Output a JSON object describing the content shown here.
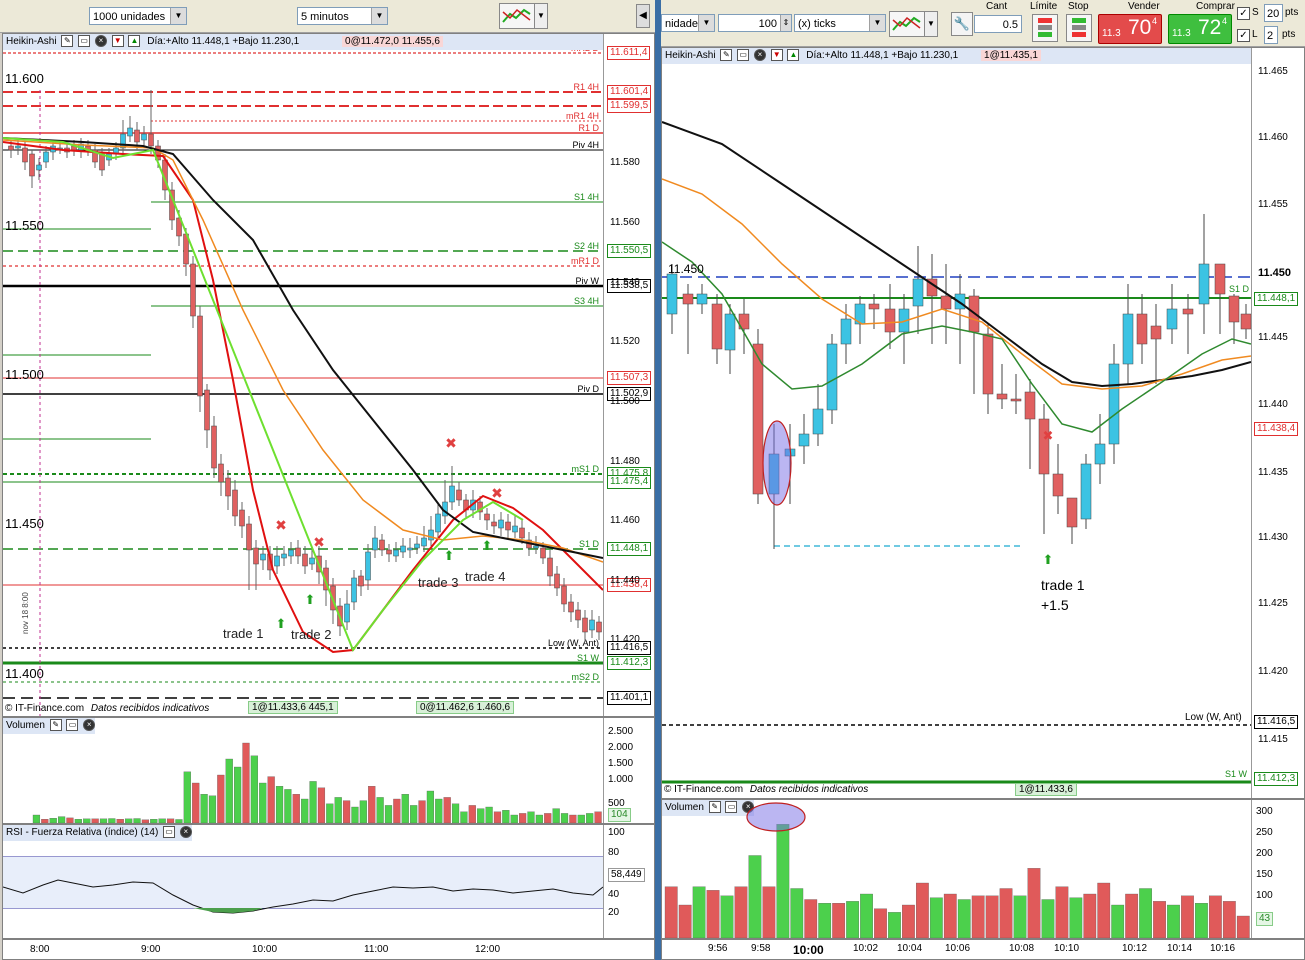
{
  "left_window": {
    "units_combo": "1000 unidades",
    "timeframe_combo": "5 minutos",
    "chart_header": {
      "instrument": "Heikin-Ashi",
      "info": "Día:+Alto 11.448,1 +Bajo 11.230,1",
      "order_tag": "0@11.472,0  11.455,6"
    },
    "price_axis": [
      "11.580",
      "11.560",
      "11.540",
      "11.520",
      "11.500",
      "11.480",
      "11.460",
      "11.440",
      "11.420"
    ],
    "levels": [
      {
        "name": "mR2 D",
        "price": "11.611,4",
        "color": "#e03030"
      },
      {
        "name": "R1 4H",
        "price": "11.601,4",
        "color": "#e03030"
      },
      {
        "name": "",
        "price": "11.599,5",
        "color": "#e03030"
      },
      {
        "name": "mR1 4H",
        "price": "",
        "color": "#e03030"
      },
      {
        "name": "R1 D",
        "price": "",
        "color": "#e03030"
      },
      {
        "name": "Piv 4H",
        "price": "",
        "color": "#000000"
      },
      {
        "name": "S1 4H",
        "price": "",
        "color": "#1a8a1a"
      },
      {
        "name": "S2 4H",
        "price": "11.550,5",
        "color": "#1a8a1a"
      },
      {
        "name": "mR1 D",
        "price": "",
        "color": "#e03030"
      },
      {
        "name": "Piv W",
        "price": "11.538,5",
        "color": "#000000"
      },
      {
        "name": "S3 4H",
        "price": "",
        "color": "#1a8a1a"
      },
      {
        "name": "",
        "price": "11.507,3",
        "color": "#e03030"
      },
      {
        "name": "Piv D",
        "price": "11.502,9",
        "color": "#000000"
      },
      {
        "name": "mS1 D",
        "price": "11.475,8",
        "color": "#1a8a1a"
      },
      {
        "name": "",
        "price": "11.475,4",
        "color": "#1a8a1a"
      },
      {
        "name": "S1 D",
        "price": "11.448,1",
        "color": "#1a8a1a"
      },
      {
        "name": "",
        "price": "11.438,4",
        "color": "#e03030"
      },
      {
        "name": "Low (W, Ant)",
        "price": "11.416,5",
        "color": "#000000"
      },
      {
        "name": "S1 W",
        "price": "11.412,3",
        "color": "#1a8a1a"
      },
      {
        "name": "mS2 D",
        "price": "",
        "color": "#1a8a1a"
      },
      {
        "name": "",
        "price": "11.401,1",
        "color": "#000000"
      }
    ],
    "left_price_labels": [
      "11.600",
      "11.550",
      "11.500",
      "11.450",
      "11.400"
    ],
    "trade_labels": [
      "trade 1",
      "trade 2",
      "trade 3",
      "trade 4"
    ],
    "footer_note": "© IT-Finance.com",
    "footer_status": "Datos recibidos indicativos",
    "footer_tag1": "1@11.433,6  445,1",
    "footer_tag2": "0@11.462,6  1.460,6",
    "volume_title": "Volumen",
    "volume_axis": [
      "2.500",
      "2.000",
      "1.500",
      "1.000",
      "500"
    ],
    "volume_last": "104",
    "rsi_title": "RSI - Fuerza Relativa (índice) (14)",
    "rsi_axis": [
      "100",
      "80",
      "60",
      "40",
      "20"
    ],
    "rsi_last": "58,449",
    "time_axis": [
      "8:00",
      "9:00",
      "10:00",
      "11:00",
      "12:00"
    ],
    "vertical_date": "nov 18 8:00"
  },
  "right_window": {
    "units_combo": "nidades",
    "ticks_value": "100",
    "ticks_combo": "(x) ticks",
    "qty_label": "Cant",
    "qty_value": "0.5",
    "limit_label": "Límite",
    "stop_label": "Stop",
    "sell_label": "Vender",
    "buy_label": "Comprar",
    "sell_prefix": "11.3",
    "sell_big": "70",
    "sell_sup": "4",
    "buy_prefix": "11.3",
    "buy_big": "72",
    "buy_sup": "4",
    "s_label": "S",
    "s_value": "20",
    "s_unit": "pts",
    "l_label": "L",
    "l_value": "2",
    "l_unit": "pts",
    "chart_header": {
      "instrument": "Heikin-Ashi",
      "info": "Día:+Alto 11.448,1 +Bajo 11.230,1",
      "order_tag": "1@11.435,1"
    },
    "price_axis": [
      "11.465",
      "11.460",
      "11.455",
      "11.450",
      "11.445",
      "11.440",
      "11.435",
      "11.430",
      "11.425",
      "11.420",
      "11.415"
    ],
    "price_tags": [
      {
        "text": "11.448,1",
        "color": "#1a8a1a"
      },
      {
        "text": "11.438,4",
        "color": "#e03030"
      },
      {
        "text": "11.416,5",
        "color": "#000000"
      },
      {
        "text": "11.412,3",
        "color": "#1a8a1a"
      }
    ],
    "level_labels": [
      "S1 D",
      "Low (W, Ant)",
      "S1 W",
      "11.450"
    ],
    "trade_label": "trade 1",
    "trade_result": "+1.5",
    "footer_note": "© IT-Finance.com",
    "footer_status": "Datos recibidos indicativos",
    "footer_tag": "1@11.433,6",
    "volume_title": "Volumen",
    "volume_axis": [
      "300",
      "250",
      "200",
      "150",
      "100",
      "50"
    ],
    "volume_last": "43",
    "time_axis": [
      "9:56",
      "9:58",
      "10:00",
      "10:02",
      "10:04",
      "10:06",
      "10:08",
      "10:10",
      "10:12",
      "10:14",
      "10:16"
    ]
  }
}
